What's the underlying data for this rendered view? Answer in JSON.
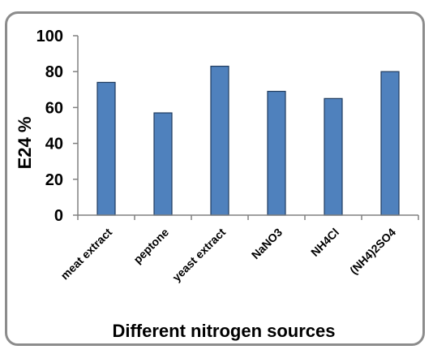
{
  "chart_data": {
    "type": "bar",
    "title": "",
    "xlabel": "Different nitrogen sources",
    "ylabel": "E24 %",
    "categories": [
      "meat extract",
      "peptone",
      "yeast extract",
      "NaNO3",
      "NH4Cl",
      "(NH4)2SO4"
    ],
    "values": [
      74,
      57,
      83,
      69,
      65,
      80
    ],
    "ylim": [
      0,
      100
    ],
    "yticks": [
      "0",
      "20",
      "40",
      "60",
      "80",
      "100"
    ],
    "grid": false,
    "legend": "none",
    "bar_color": "#4f81bd",
    "bar_edge_color": "#1f3b5e"
  }
}
